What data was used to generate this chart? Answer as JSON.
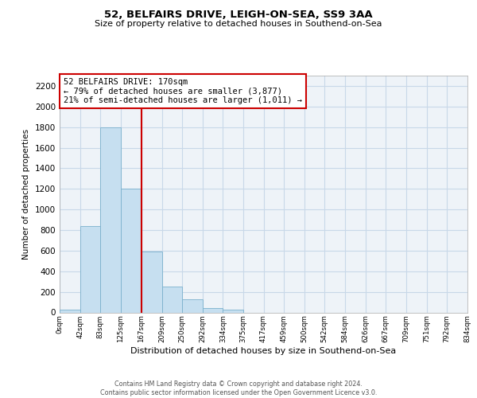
{
  "title": "52, BELFAIRS DRIVE, LEIGH-ON-SEA, SS9 3AA",
  "subtitle": "Size of property relative to detached houses in Southend-on-Sea",
  "xlabel": "Distribution of detached houses by size in Southend-on-Sea",
  "ylabel": "Number of detached properties",
  "bin_edges": [
    0,
    42,
    83,
    125,
    167,
    209,
    250,
    292,
    334,
    375,
    417,
    459,
    500,
    542,
    584,
    626,
    667,
    709,
    751,
    792,
    834
  ],
  "counts": [
    25,
    840,
    1800,
    1200,
    590,
    255,
    125,
    45,
    30,
    0,
    0,
    0,
    0,
    0,
    0,
    0,
    0,
    0,
    0,
    0
  ],
  "bar_color": "#c6dff0",
  "bar_edge_color": "#7ab0cc",
  "vline_x": 167,
  "vline_color": "#cc0000",
  "annotation_line1": "52 BELFAIRS DRIVE: 170sqm",
  "annotation_line2": "← 79% of detached houses are smaller (3,877)",
  "annotation_line3": "21% of semi-detached houses are larger (1,011) →",
  "annotation_box_color": "#ffffff",
  "annotation_box_edge": "#cc0000",
  "ylim": [
    0,
    2300
  ],
  "yticks": [
    0,
    200,
    400,
    600,
    800,
    1000,
    1200,
    1400,
    1600,
    1800,
    2000,
    2200
  ],
  "tick_labels": [
    "0sqm",
    "42sqm",
    "83sqm",
    "125sqm",
    "167sqm",
    "209sqm",
    "250sqm",
    "292sqm",
    "334sqm",
    "375sqm",
    "417sqm",
    "459sqm",
    "500sqm",
    "542sqm",
    "584sqm",
    "626sqm",
    "667sqm",
    "709sqm",
    "751sqm",
    "792sqm",
    "834sqm"
  ],
  "footer_line1": "Contains HM Land Registry data © Crown copyright and database right 2024.",
  "footer_line2": "Contains public sector information licensed under the Open Government Licence v3.0.",
  "background_color": "#ffffff",
  "plot_bg_color": "#eef3f8",
  "grid_color": "#c8d8e8"
}
